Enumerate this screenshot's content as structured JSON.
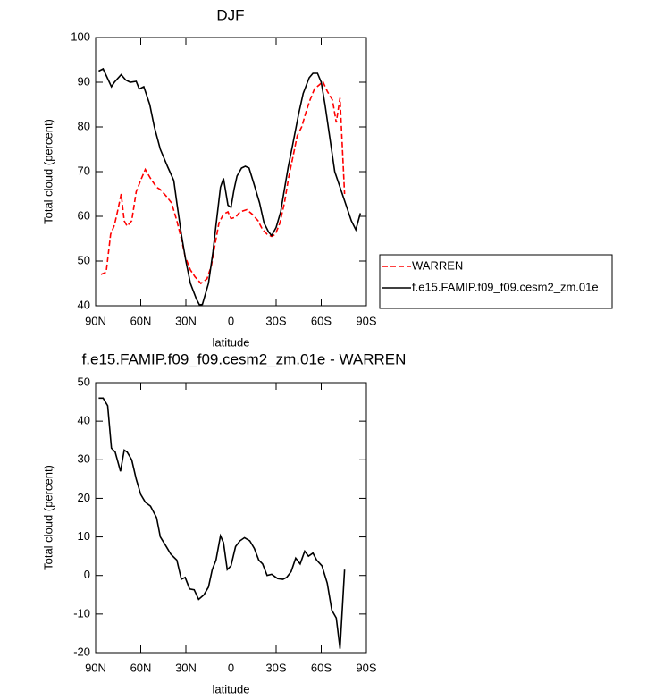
{
  "chart_data": [
    {
      "type": "line",
      "title": "DJF",
      "x_label": "latitude",
      "y_label": "Total cloud (percent)",
      "xlim": [
        90,
        -90
      ],
      "ylim": [
        40,
        100
      ],
      "xticks": [
        {
          "value": 90,
          "label": "90N"
        },
        {
          "value": 60,
          "label": "60N"
        },
        {
          "value": 30,
          "label": "30N"
        },
        0,
        {
          "value": -30,
          "label": "30S"
        },
        {
          "value": -60,
          "label": "60S"
        },
        {
          "value": -90,
          "label": "90S"
        }
      ],
      "yticks": [
        40,
        50,
        60,
        70,
        80,
        90,
        100
      ],
      "legend": "right",
      "series": [
        {
          "name": "WARREN",
          "color": "#ff0000",
          "dash": true,
          "x": [
            86.5,
            83,
            80,
            77.5,
            75.5,
            73,
            71,
            69,
            66,
            63,
            59.5,
            57,
            53.5,
            49.5,
            47,
            43,
            39.5,
            36,
            33,
            30.5,
            27,
            24,
            20,
            16,
            13,
            11,
            8,
            5,
            2,
            0,
            -3,
            -6,
            -10.5,
            -14,
            -18,
            -21,
            -24,
            -27,
            -29.5,
            -32.5,
            -35.5,
            -38.5,
            -41,
            -44,
            -47,
            -50,
            -52.5,
            -55.5,
            -59,
            -61,
            -64,
            -67.5,
            -70,
            -72.5,
            -75.5
          ],
          "values": [
            47,
            47.5,
            56,
            58,
            61,
            65,
            59,
            57.8,
            59,
            65.5,
            68.5,
            70.5,
            68.5,
            66.5,
            66,
            64.5,
            63,
            59,
            55,
            51,
            48,
            46.5,
            45,
            46,
            49,
            53,
            58.5,
            60.5,
            61,
            59.5,
            59.8,
            61,
            61.5,
            60.5,
            59,
            57,
            56,
            55.5,
            56,
            58.5,
            63,
            69,
            73,
            78,
            80,
            83.5,
            86,
            88.5,
            89.5,
            90.2,
            88,
            86,
            81,
            86.5,
            65
          ]
        },
        {
          "name": "f.e15.FAMIP.f09_f09.cesm2_zm.01e",
          "color": "#000000",
          "dash": false,
          "x": [
            88,
            85,
            79.5,
            77.5,
            73,
            70,
            67,
            63,
            61,
            58,
            54,
            51,
            47,
            42,
            38,
            36,
            33,
            30,
            27,
            23,
            21,
            19,
            15,
            12,
            10,
            7,
            5,
            2,
            0,
            -2,
            -4,
            -7,
            -9.5,
            -12,
            -15,
            -19,
            -22,
            -25,
            -27,
            -30,
            -33,
            -35,
            -38,
            -41,
            -45,
            -48,
            -52,
            -54.5,
            -57.5,
            -60,
            -62.5,
            -65.5,
            -69,
            -72,
            -75.5,
            -80,
            -83,
            -86
          ],
          "values": [
            92.5,
            93,
            89,
            90,
            91.7,
            90.5,
            90,
            90.2,
            88.5,
            89,
            85,
            80,
            75,
            71,
            68,
            63,
            56,
            50,
            45,
            41.5,
            40.2,
            40.3,
            45,
            52,
            58,
            66.5,
            68.5,
            62.5,
            62,
            66,
            69,
            70.8,
            71.2,
            70.8,
            67.5,
            63,
            58.5,
            56.5,
            55.7,
            57.5,
            61,
            65,
            71,
            76,
            83,
            87.5,
            91,
            92,
            92,
            90,
            85,
            78,
            70,
            67,
            63.5,
            59,
            57,
            60.7
          ]
        }
      ]
    },
    {
      "type": "line",
      "title": "f.e15.FAMIP.f09_f09.cesm2_zm.01e - WARREN",
      "x_label": "latitude",
      "y_label": "Total cloud (percent)",
      "xlim": [
        90,
        -90
      ],
      "ylim": [
        -20,
        50
      ],
      "xticks": [
        {
          "value": 90,
          "label": "90N"
        },
        {
          "value": 60,
          "label": "60N"
        },
        {
          "value": 30,
          "label": "30N"
        },
        0,
        {
          "value": -30,
          "label": "30S"
        },
        {
          "value": -60,
          "label": "60S"
        },
        {
          "value": -90,
          "label": "90S"
        }
      ],
      "yticks": [
        -20,
        -10,
        0,
        10,
        20,
        30,
        40,
        50
      ],
      "series": [
        {
          "color": "#000000",
          "dash": false,
          "x": [
            88,
            85,
            82,
            79.5,
            77,
            73.5,
            71,
            69,
            66,
            63,
            60,
            57,
            53.5,
            49.5,
            47,
            43,
            40,
            36,
            33,
            30.5,
            27.5,
            24.5,
            21.5,
            18,
            15,
            12.5,
            10,
            7,
            5,
            2.5,
            0,
            -3,
            -6,
            -9,
            -12.5,
            -15.5,
            -18.5,
            -21,
            -24,
            -27,
            -31,
            -34.5,
            -37,
            -40,
            -43,
            -46,
            -49,
            -51.5,
            -54.5,
            -57,
            -60.5,
            -64,
            -67,
            -70,
            -72.5,
            -75.5
          ],
          "values": [
            46,
            46,
            44,
            33,
            32,
            27,
            32.5,
            32,
            30,
            25,
            21,
            19,
            18,
            15,
            10,
            7.5,
            5.5,
            4,
            -1,
            -0.5,
            -3.5,
            -3.7,
            -6.2,
            -5,
            -3,
            1.5,
            4,
            10.3,
            8.5,
            1.5,
            2.5,
            7.5,
            9,
            9.8,
            9,
            7,
            4,
            3,
            0,
            0.3,
            -0.8,
            -1,
            -0.5,
            1,
            4.5,
            3,
            6.3,
            5,
            5.8,
            4,
            2.5,
            -2,
            -9,
            -11,
            -19,
            1.5
          ]
        }
      ]
    }
  ]
}
